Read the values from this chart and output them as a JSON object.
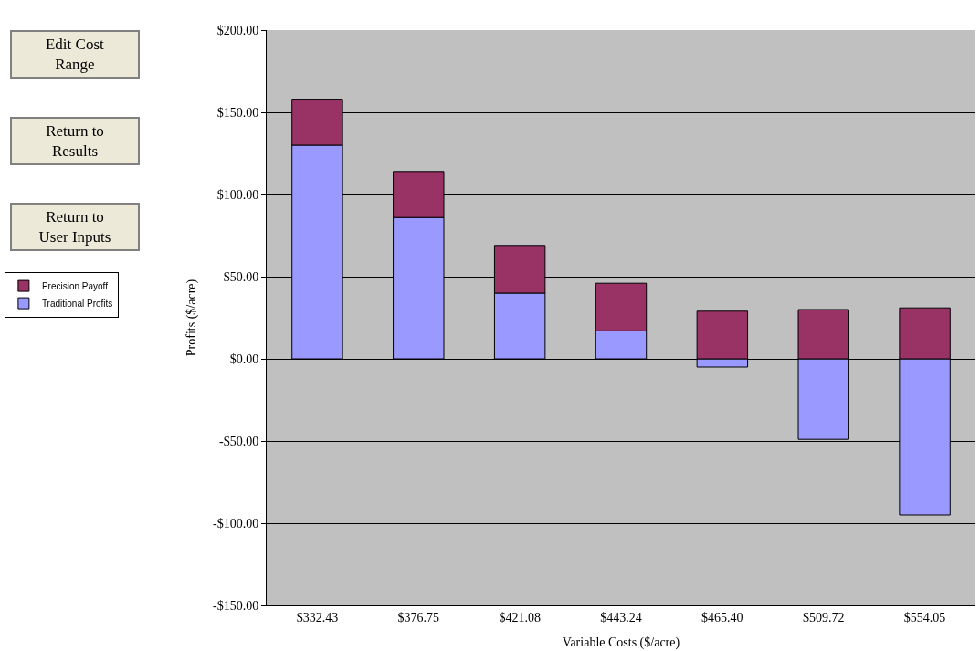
{
  "chart_data": {
    "type": "bar",
    "stacked": true,
    "xlabel": "Variable Costs ($/acre)",
    "ylabel": "Profits ($/acre)",
    "categories": [
      "$332.43",
      "$376.75",
      "$421.08",
      "$443.24",
      "$465.40",
      "$509.72",
      "$554.05"
    ],
    "series": [
      {
        "name": "Traditional Profits",
        "color": "#9999ff",
        "values": [
          130,
          86,
          40,
          17,
          -5,
          -49,
          -95
        ]
      },
      {
        "name": "Precision Payoff",
        "color": "#993366",
        "values": [
          28,
          28,
          29,
          29,
          29,
          30,
          31
        ]
      }
    ],
    "ylim": [
      -150,
      200
    ],
    "yticks": [
      {
        "value": -150,
        "label": "-$150.00"
      },
      {
        "value": -100,
        "label": "-$100.00"
      },
      {
        "value": -50,
        "label": "-$50.00"
      },
      {
        "value": 0,
        "label": "$0.00"
      },
      {
        "value": 50,
        "label": "$50.00"
      },
      {
        "value": 100,
        "label": "$100.00"
      },
      {
        "value": 150,
        "label": "$150.00"
      },
      {
        "value": 200,
        "label": "$200.00"
      }
    ],
    "grid": "y",
    "legend": "left",
    "annotations": [
      "Edit Cost Range",
      "Return to Results",
      "Return to User Inputs"
    ]
  }
}
